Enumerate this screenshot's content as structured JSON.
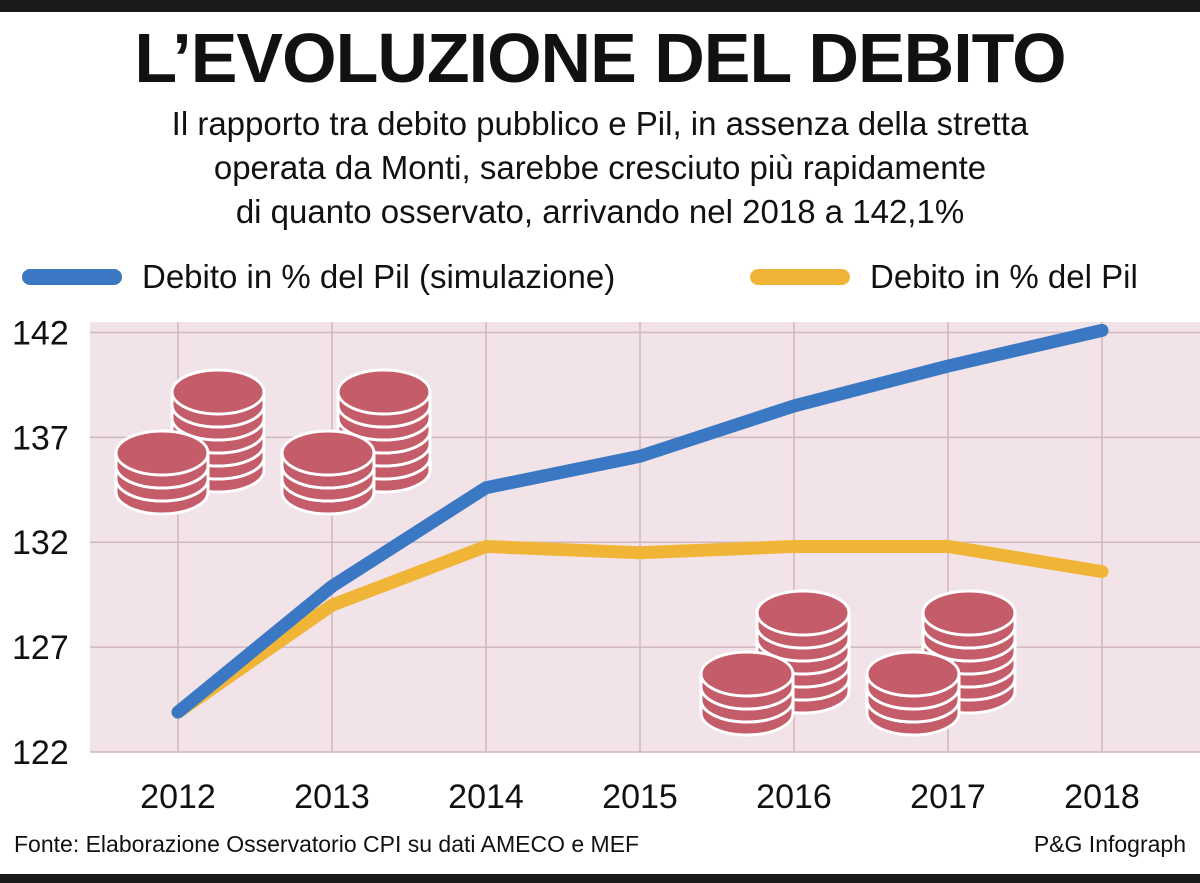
{
  "title": "L’EVOLUZIONE DEL DEBITO",
  "subtitle": [
    "Il rapporto tra debito pubblico e Pil, in assenza della stretta",
    "operata da Monti, sarebbe cresciuto più rapidamente",
    "di quanto osservato, arrivando nel 2018 a 142,1%"
  ],
  "footer": {
    "source": "Fonte: Elaborazione Osservatorio CPI su dati AMECO e MEF",
    "credit": "P&G Infograph"
  },
  "colors": {
    "plot_background": "#f2e3e8",
    "grid": "#cfb7be",
    "coins": "#c45c6a",
    "simulation": "#3b78c3",
    "actual": "#f0b537"
  },
  "chart_data": {
    "type": "line",
    "x": [
      "2012",
      "2013",
      "2014",
      "2015",
      "2016",
      "2017",
      "2018"
    ],
    "series": [
      {
        "name": "Debito in % del Pil (simulazione)",
        "color": "#3b78c3",
        "values": [
          123.9,
          129.9,
          134.6,
          136.1,
          138.5,
          140.4,
          142.1
        ]
      },
      {
        "name": "Debito in % del Pil",
        "color": "#f0b537",
        "values": [
          123.9,
          129.0,
          131.8,
          131.5,
          131.8,
          131.8,
          130.6
        ]
      }
    ],
    "yticks": [
      122,
      127,
      132,
      137,
      142
    ],
    "ylim": [
      122,
      142.5
    ],
    "grid": true,
    "legend": "top",
    "decoration": "coin-stacks"
  }
}
